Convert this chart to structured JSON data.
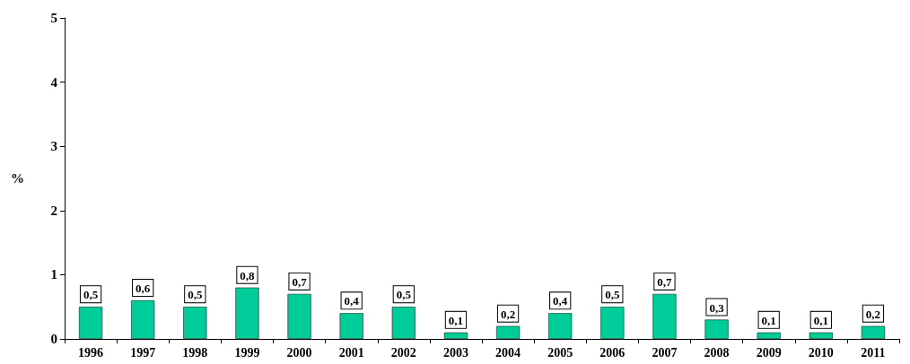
{
  "chart_data": {
    "type": "bar",
    "ylabel": "%",
    "categories": [
      "1996",
      "1997",
      "1998",
      "1999",
      "2000",
      "2001",
      "2002",
      "2003",
      "2004",
      "2005",
      "2006",
      "2007",
      "2008",
      "2009",
      "2010",
      "2011"
    ],
    "values": [
      0.5,
      0.6,
      0.5,
      0.8,
      0.7,
      0.4,
      0.5,
      0.1,
      0.2,
      0.4,
      0.5,
      0.7,
      0.3,
      0.1,
      0.1,
      0.2
    ],
    "value_labels": [
      "0,5",
      "0,6",
      "0,5",
      "0,8",
      "0,7",
      "0,4",
      "0,5",
      "0,1",
      "0,2",
      "0,4",
      "0,5",
      "0,7",
      "0,3",
      "0,1",
      "0,1",
      "0,2"
    ],
    "color": "#00cc99",
    "ylim": [
      0,
      5
    ],
    "yticks": [
      0,
      1,
      2,
      3,
      4,
      5
    ],
    "grid": false
  }
}
